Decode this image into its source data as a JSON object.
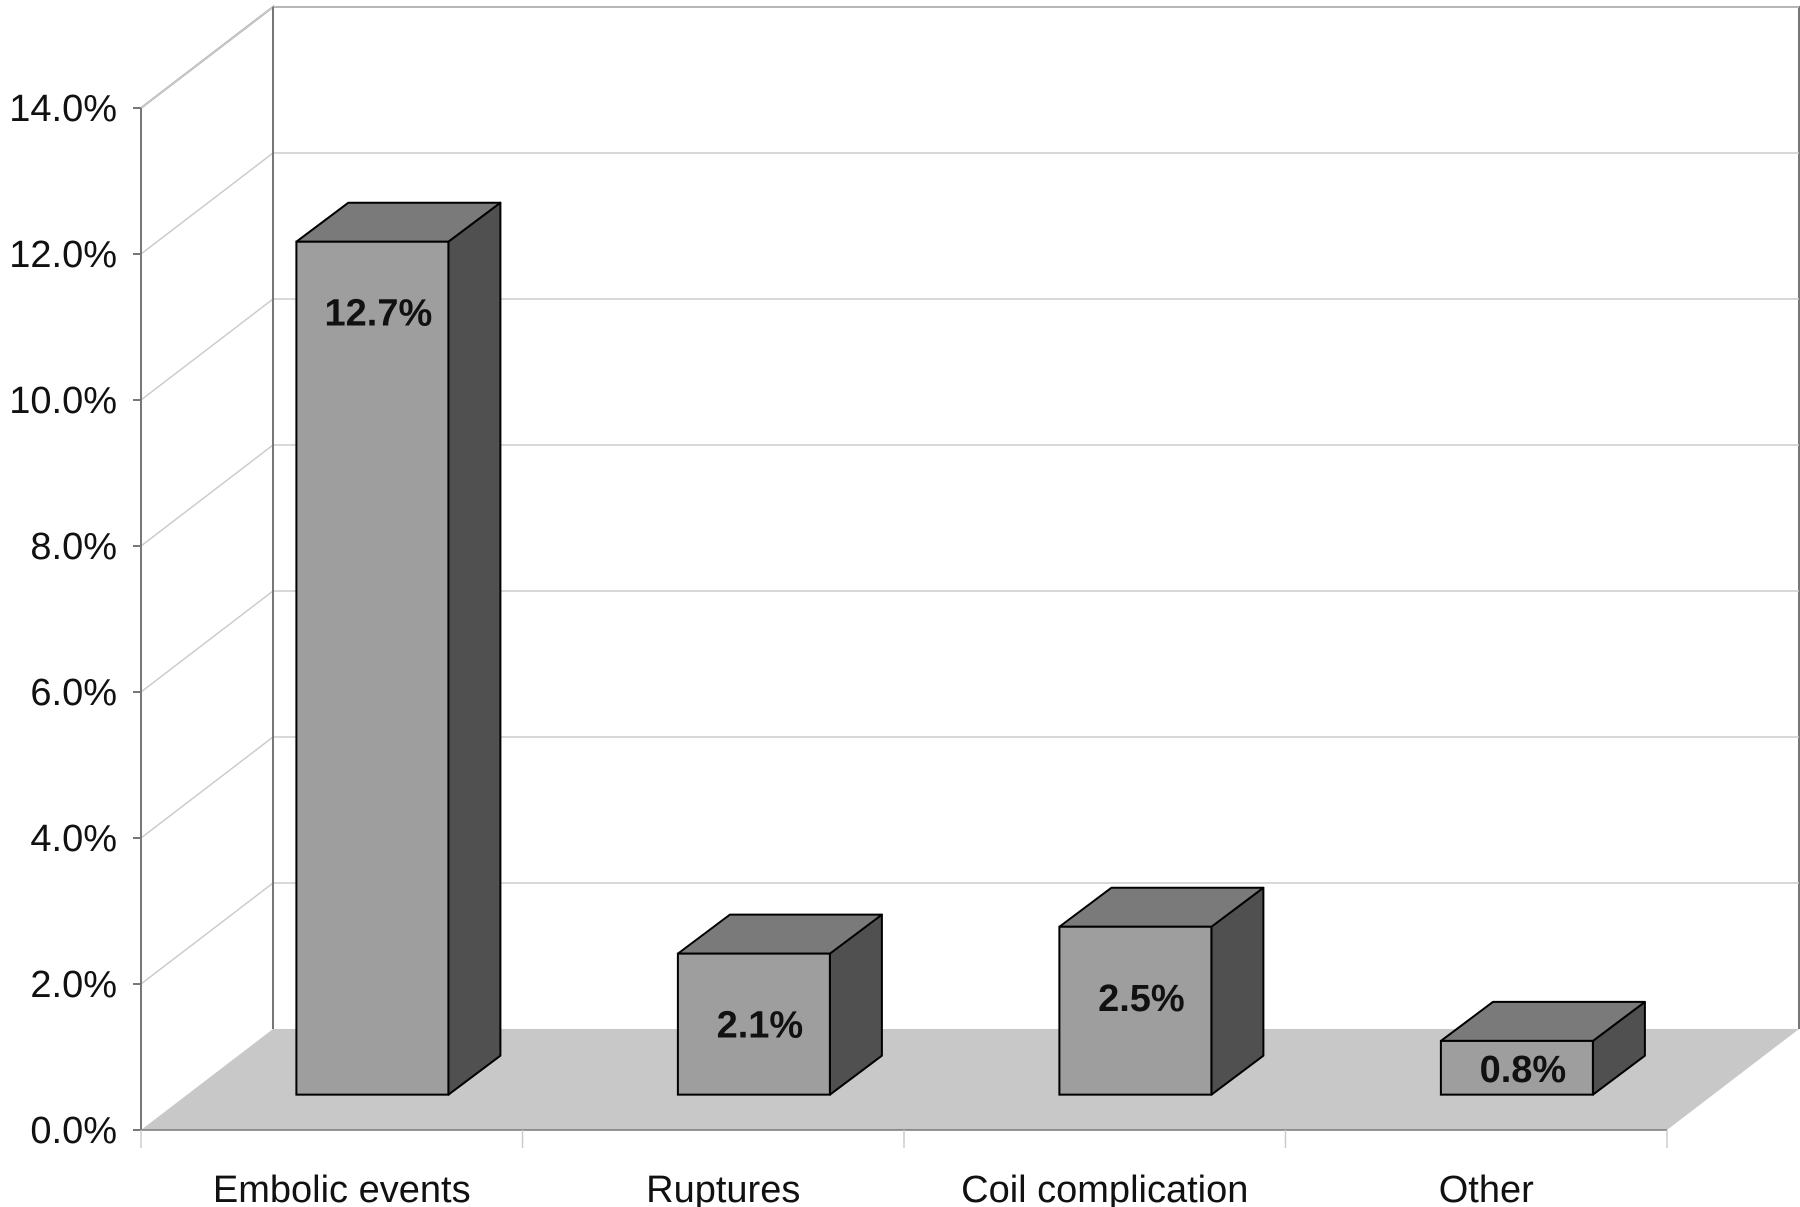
{
  "chart_data": {
    "type": "bar",
    "categories": [
      "Embolic events",
      "Ruptures",
      "Coil complication",
      "Other"
    ],
    "values": [
      12.7,
      2.1,
      2.5,
      0.8
    ],
    "data_labels": [
      "12.7%",
      "2.1%",
      "2.5%",
      "0.8%"
    ],
    "y_ticks": [
      "0.0%",
      "2.0%",
      "4.0%",
      "6.0%",
      "8.0%",
      "10.0%",
      "12.0%",
      "14.0%"
    ],
    "ylim": [
      0,
      14
    ],
    "grid": true,
    "style": "3d",
    "colors": {
      "bar_front": "#9e9e9e",
      "bar_top": "#7a7a7a",
      "bar_side": "#505050",
      "floor": "#c8c8c8",
      "gridline": "#cccccc",
      "axis": "#777777"
    }
  }
}
